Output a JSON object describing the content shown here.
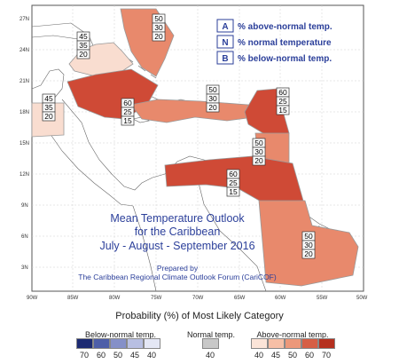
{
  "title": {
    "line1": "Mean Temperature Outlook",
    "line2": "for the Caribbean",
    "line3": "July - August - September 2016",
    "prepared_by": "Prepared by",
    "org": "The Caribbean Regional Climate Outlook Forum (CariCOF)"
  },
  "key": [
    {
      "letter": "A",
      "text": "% above-normal temp."
    },
    {
      "letter": "N",
      "text": "% normal temperature"
    },
    {
      "letter": "B",
      "text": "% below-normal temp."
    }
  ],
  "lat_labels": [
    "27N",
    "24N",
    "21N",
    "18N",
    "15N",
    "12N",
    "9N",
    "6N",
    "3N"
  ],
  "lon_labels": [
    "90W",
    "85W",
    "80W",
    "75W",
    "70W",
    "65W",
    "60W",
    "55W",
    "50W"
  ],
  "zones": [
    {
      "name": "gulf-of-honduras-zone",
      "probs": [
        "45",
        "35",
        "20"
      ],
      "color": "#f9ddd0"
    },
    {
      "name": "bahamas-zone",
      "probs": [
        "50",
        "30",
        "20"
      ],
      "color": "#e8896c"
    },
    {
      "name": "central-america-west-zone",
      "probs": [
        "45",
        "35",
        "20"
      ],
      "color": "#f9ddd0"
    },
    {
      "name": "cuba-jamaica-zone",
      "probs": [
        "60",
        "25",
        "15"
      ],
      "color": "#cf4a36"
    },
    {
      "name": "hispaniola-puerto-rico-zone",
      "probs": [
        "50",
        "30",
        "20"
      ],
      "color": "#e8896c"
    },
    {
      "name": "leeward-islands-zone",
      "probs": [
        "60",
        "25",
        "15"
      ],
      "color": "#cf4a36"
    },
    {
      "name": "windward-islands-zone",
      "probs": [
        "50",
        "30",
        "20"
      ],
      "color": "#e8896c"
    },
    {
      "name": "caribbean-south-zone",
      "probs": [
        "60",
        "25",
        "15"
      ],
      "color": "#cf4a36"
    },
    {
      "name": "guianas-zone",
      "probs": [
        "50",
        "30",
        "20"
      ],
      "color": "#e8896c"
    }
  ],
  "legend": {
    "title": "Probability (%) of Most Likely Category",
    "below_label": "Below-normal temp.",
    "normal_label": "Normal temp.",
    "above_label": "Above-normal temp.",
    "below_ticks": [
      "70",
      "60",
      "50",
      "45",
      "40"
    ],
    "below_colors": [
      "#1c2a72",
      "#4d5ea8",
      "#8590c8",
      "#b8bfe2",
      "#e4e7f5"
    ],
    "normal_ticks": [
      "40"
    ],
    "normal_colors": [
      "#c8c8c8"
    ],
    "above_ticks": [
      "40",
      "45",
      "50",
      "60",
      "70"
    ],
    "above_colors": [
      "#fbe4d8",
      "#f6bfa6",
      "#ec987a",
      "#d65f46",
      "#b5301f"
    ]
  }
}
